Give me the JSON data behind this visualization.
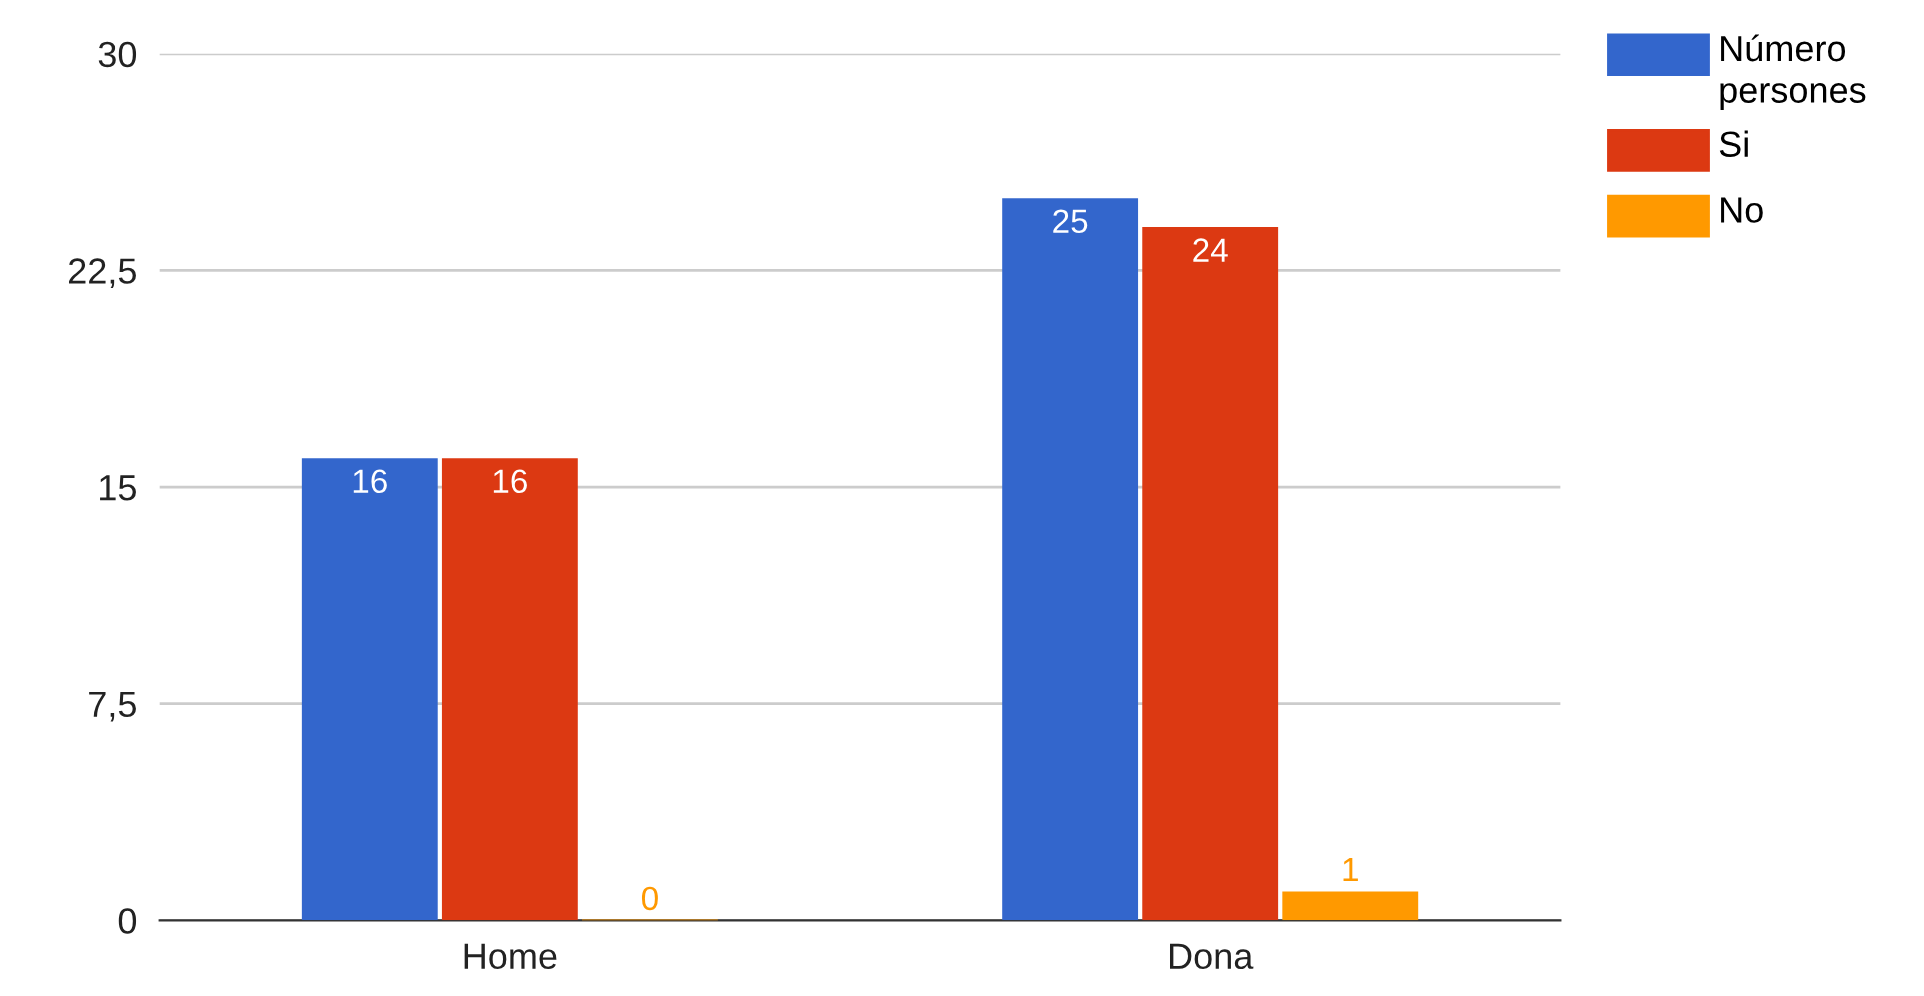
{
  "chart_data": {
    "type": "bar",
    "categories": [
      "Home",
      "Dona"
    ],
    "series": [
      {
        "name": "Número persones",
        "color": "#3366cc",
        "values": [
          16,
          25
        ]
      },
      {
        "name": "Si",
        "color": "#dc3912",
        "values": [
          16,
          24
        ]
      },
      {
        "name": "No",
        "color": "#ff9900",
        "values": [
          0,
          1
        ]
      }
    ],
    "ylim": [
      0,
      30
    ],
    "yticks": [
      0,
      {
        "value": 7.5,
        "label": "7,5"
      },
      15,
      {
        "value": 22.5,
        "label": "22,5"
      },
      30
    ],
    "grid": "y",
    "legend": "top right",
    "data_labels": true
  }
}
